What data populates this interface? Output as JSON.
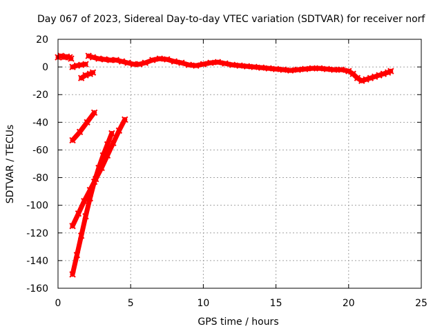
{
  "chart_data": {
    "type": "scatter",
    "title": "Day 067 of 2023, Sidereal Day-to-day VTEC variation (SDTVAR) for receiver norf",
    "xlabel": "GPS time / hours",
    "ylabel": "SDTVAR / TECUs",
    "xlim": [
      0,
      25
    ],
    "ylim": [
      -160,
      20
    ],
    "xticks": [
      0,
      5,
      10,
      15,
      20,
      25
    ],
    "yticks": [
      -160,
      -140,
      -120,
      -100,
      -80,
      -60,
      -40,
      -20,
      0,
      20
    ],
    "xtick_labels": [
      "0",
      "5",
      "10",
      "15",
      "20",
      "25"
    ],
    "ytick_labels": [
      "-160",
      "-140",
      "-120",
      "-100",
      "-80",
      "-60",
      "-40",
      "-20",
      "0",
      "20"
    ],
    "grid": true,
    "legend": "none",
    "marker_color": "#ff0000",
    "series": [
      {
        "x": [
          0.0,
          0.2,
          0.4,
          0.6,
          0.8,
          0.9
        ],
        "y": [
          7,
          8,
          7,
          7.5,
          7,
          6
        ]
      },
      {
        "x": [
          1.0,
          1.3,
          1.6,
          1.9
        ],
        "y": [
          0,
          1,
          1.5,
          2
        ]
      },
      {
        "x": [
          1.6,
          1.9,
          2.2,
          2.4
        ],
        "y": [
          -8,
          -6,
          -5,
          -4
        ]
      },
      {
        "x": [
          2.1,
          2.4,
          2.8,
          3.2,
          3.6,
          4.0,
          4.4,
          4.8,
          5.2,
          5.6,
          6.0,
          6.5,
          7.0,
          7.5,
          8.0,
          8.5,
          9.0,
          9.5,
          10.0,
          10.5,
          11.0,
          11.5,
          12.0,
          12.5,
          13.0,
          13.5,
          14.0,
          14.5,
          15.0,
          15.5,
          16.0,
          16.5,
          17.0,
          17.5,
          18.0,
          18.5,
          19.0,
          19.5,
          20.0,
          20.3,
          20.6,
          20.9,
          21.2,
          21.5,
          21.8,
          22.1,
          22.4,
          22.7,
          22.9
        ],
        "y": [
          8,
          7,
          6,
          5.5,
          5,
          5,
          4,
          3,
          2,
          2,
          3,
          5,
          6,
          5.5,
          4,
          3,
          1.5,
          1,
          2,
          3,
          3.5,
          2.5,
          1.5,
          1,
          0.5,
          0,
          -0.5,
          -1,
          -1.5,
          -2,
          -2.5,
          -2,
          -1.5,
          -1,
          -1,
          -1.5,
          -2,
          -2,
          -3,
          -5,
          -8,
          -10,
          -9,
          -8,
          -7,
          -6,
          -5,
          -4,
          -3
        ]
      },
      {
        "x": [
          1.0,
          1.5,
          2.0,
          2.5
        ],
        "y": [
          -53,
          -47,
          -40,
          -33
        ]
      },
      {
        "x": [
          1.0,
          1.4,
          1.8,
          2.2,
          2.6,
          3.0,
          3.4,
          3.8,
          4.2,
          4.6
        ],
        "y": [
          -115,
          -106,
          -97,
          -89,
          -81,
          -73,
          -64,
          -55,
          -46,
          -38
        ]
      },
      {
        "x": [
          1.0,
          1.3,
          1.6,
          1.9,
          2.2,
          2.5,
          2.8,
          3.1,
          3.4,
          3.7
        ],
        "y": [
          -150,
          -136,
          -122,
          -108,
          -95,
          -83,
          -73,
          -64,
          -56,
          -48
        ]
      }
    ]
  }
}
